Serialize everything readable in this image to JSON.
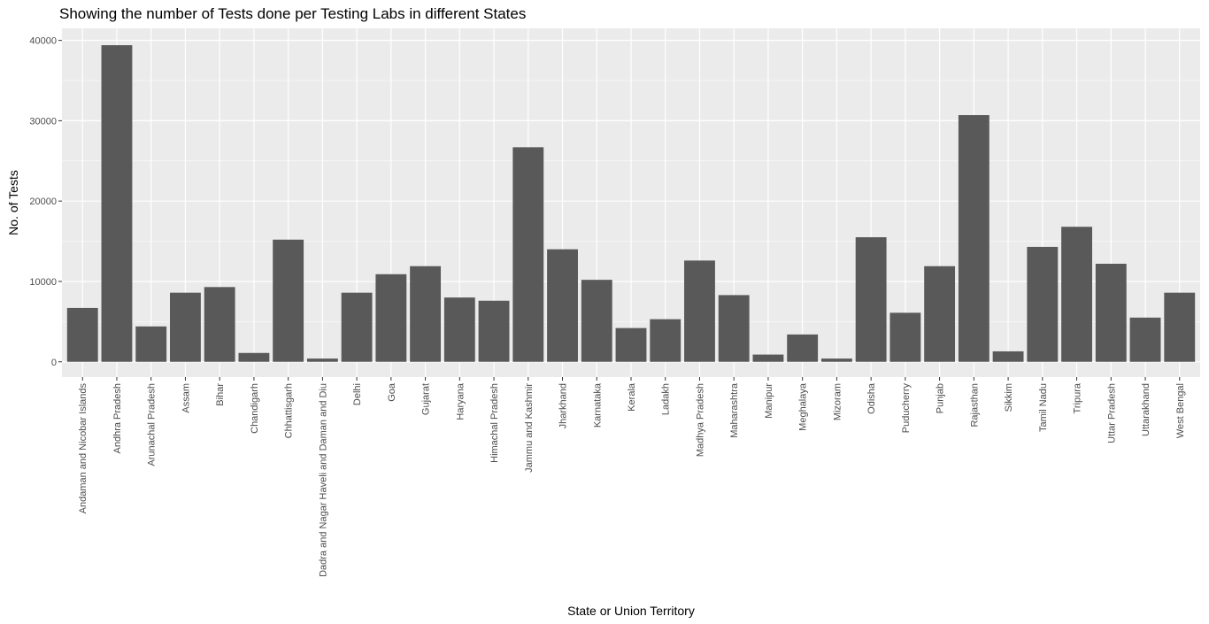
{
  "chart_data": {
    "type": "bar",
    "title": "Showing the number of Tests done per Testing Labs in different States",
    "xlabel": "State or Union Territory",
    "ylabel": "No. of Tests",
    "ylim": [
      -1900,
      41500
    ],
    "yticks": [
      0,
      10000,
      20000,
      30000,
      40000
    ],
    "grid": true,
    "legend": "none",
    "categories": [
      "Andaman and Nicobar Islands",
      "Andhra Pradesh",
      "Arunachal Pradesh",
      "Assam",
      "Bihar",
      "Chandigarh",
      "Chhattisgarh",
      "Dadra and Nagar Haveli and Daman and Diu",
      "Delhi",
      "Goa",
      "Gujarat",
      "Haryana",
      "Himachal Pradesh",
      "Jammu and Kashmir",
      "Jharkhand",
      "Karnataka",
      "Kerala",
      "Ladakh",
      "Madhya Pradesh",
      "Maharashtra",
      "Manipur",
      "Meghalaya",
      "Mizoram",
      "Odisha",
      "Puducherry",
      "Punjab",
      "Rajasthan",
      "Sikkim",
      "Tamil Nadu",
      "Tripura",
      "Uttar Pradesh",
      "Uttarakhand",
      "West Bengal"
    ],
    "values": [
      6700,
      39400,
      4400,
      8600,
      9300,
      1100,
      15200,
      400,
      8600,
      10900,
      11900,
      8000,
      7600,
      26700,
      14000,
      10200,
      4200,
      5300,
      12600,
      8300,
      900,
      3400,
      400,
      15500,
      6100,
      11900,
      30700,
      1300,
      14300,
      16800,
      12200,
      5500,
      8600
    ]
  },
  "colors": {
    "bar": "#595959",
    "panel": "#ebebeb",
    "grid_major": "#ffffff",
    "tick_text": "#4d4d4d"
  }
}
